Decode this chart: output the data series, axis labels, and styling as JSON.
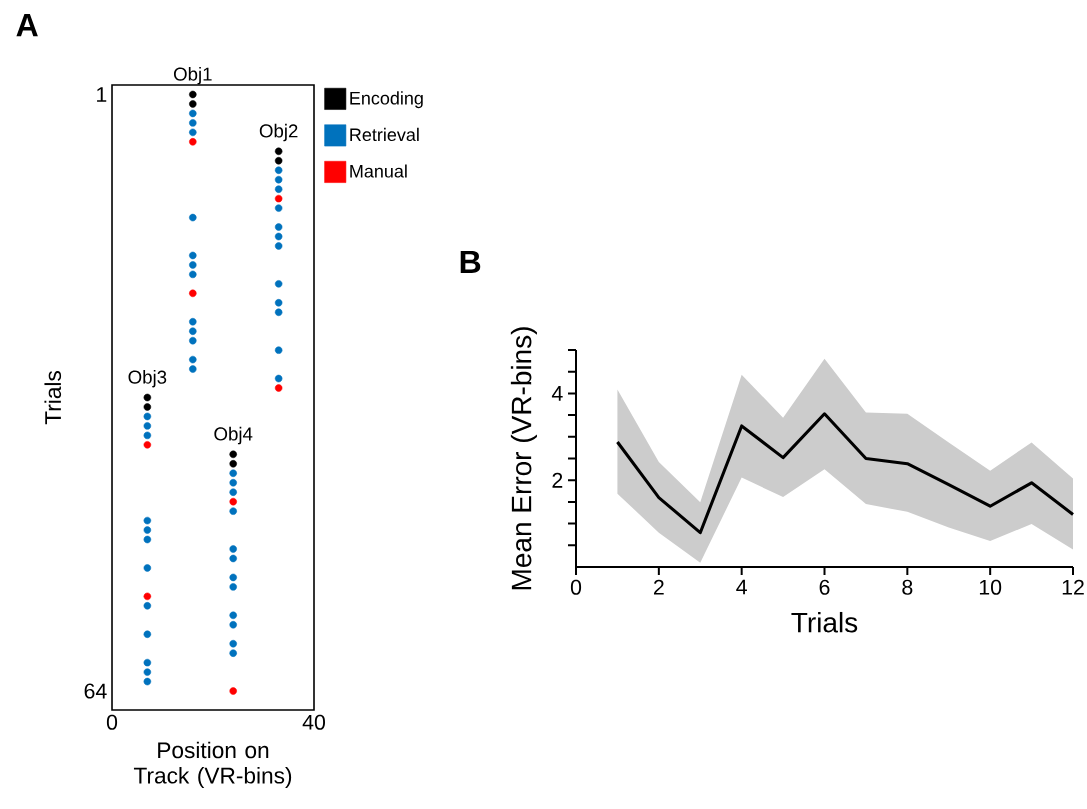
{
  "chart_data": [
    {
      "type": "scatter",
      "title": "A",
      "xlabel": "Position on Track (VR-bins)",
      "ylabel": "Trials",
      "xlim": [
        0,
        40
      ],
      "xticks": [
        0,
        40
      ],
      "ylim": [
        66,
        0
      ],
      "yticks": [
        1,
        64
      ],
      "legend": "right",
      "marker": "circle",
      "series": [
        {
          "name": "Encoding",
          "color": "#000000",
          "x": [
            16,
            16,
            33,
            33,
            7,
            7,
            24,
            24
          ],
          "values": [
            1,
            2,
            7,
            8,
            33,
            34,
            39,
            40
          ]
        },
        {
          "name": "Retrieval",
          "color": "#0072bd",
          "x": [
            16,
            16,
            16,
            16,
            16,
            16,
            16,
            16,
            16,
            16,
            16,
            16,
            33,
            33,
            33,
            33,
            33,
            33,
            33,
            33,
            33,
            33,
            33,
            33,
            7,
            7,
            7,
            7,
            7,
            7,
            7,
            7,
            7,
            7,
            7,
            7,
            24,
            24,
            24,
            24,
            24,
            24,
            24,
            24,
            24,
            24,
            24,
            24
          ],
          "values": [
            3,
            4,
            5,
            14,
            18,
            19,
            20,
            25,
            26,
            27,
            29,
            30,
            9,
            10,
            11,
            13,
            15,
            16,
            17,
            21,
            23,
            24,
            28,
            31,
            35,
            36,
            37,
            46,
            47,
            48,
            51,
            55,
            58,
            61,
            62,
            63,
            41,
            42,
            43,
            45,
            49,
            50,
            52,
            53,
            56,
            57,
            59,
            60
          ]
        },
        {
          "name": "Manual",
          "color": "#ff0000",
          "x": [
            16,
            16,
            33,
            33,
            7,
            7,
            24,
            24
          ],
          "values": [
            6,
            22,
            12,
            32,
            38,
            54,
            44,
            64
          ]
        }
      ],
      "annotations": [
        {
          "text": "Obj1",
          "x": 16,
          "y": 1
        },
        {
          "text": "Obj2",
          "x": 33,
          "y": 7
        },
        {
          "text": "Obj3",
          "x": 7,
          "y": 33
        },
        {
          "text": "Obj4",
          "x": 24,
          "y": 39
        }
      ]
    },
    {
      "type": "line",
      "title": "B",
      "xlabel": "Trials",
      "ylabel": "Mean Error (VR-bins)",
      "xlim": [
        0,
        12
      ],
      "xticks": [
        0,
        2,
        4,
        6,
        8,
        10,
        12
      ],
      "ylim": [
        0,
        5
      ],
      "yticks": [
        {
          "value": 0.5,
          "label": null
        },
        {
          "value": 1,
          "label": null
        },
        {
          "value": 1.5,
          "label": null
        },
        2,
        {
          "value": 2.5,
          "label": null
        },
        {
          "value": 3,
          "label": null
        },
        {
          "value": 3.5,
          "label": null
        },
        4,
        {
          "value": 4.5,
          "label": null
        },
        {
          "value": 5,
          "label": null
        }
      ],
      "series": [
        {
          "color": "#000000",
          "x": [
            1,
            2,
            3,
            4,
            5,
            6,
            7,
            8,
            9,
            10,
            11,
            12
          ],
          "values": [
            2.88,
            1.6,
            0.79,
            3.25,
            2.52,
            3.53,
            2.5,
            2.38,
            1.9,
            1.4,
            1.94,
            1.21
          ],
          "lower": [
            1.69,
            0.79,
            0.1,
            2.06,
            1.61,
            2.25,
            1.45,
            1.27,
            0.91,
            0.6,
            0.99,
            0.4
          ],
          "upper": [
            4.09,
            2.42,
            1.49,
            4.43,
            3.44,
            4.8,
            3.56,
            3.53,
            2.87,
            2.22,
            2.87,
            2.04
          ]
        }
      ]
    }
  ]
}
